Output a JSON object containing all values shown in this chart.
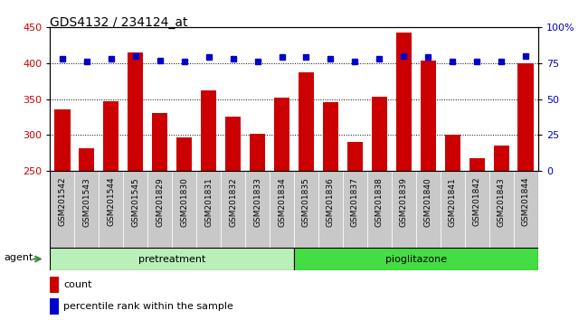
{
  "title": "GDS4132 / 234124_at",
  "samples": [
    "GSM201542",
    "GSM201543",
    "GSM201544",
    "GSM201545",
    "GSM201829",
    "GSM201830",
    "GSM201831",
    "GSM201832",
    "GSM201833",
    "GSM201834",
    "GSM201835",
    "GSM201836",
    "GSM201837",
    "GSM201838",
    "GSM201839",
    "GSM201840",
    "GSM201841",
    "GSM201842",
    "GSM201843",
    "GSM201844"
  ],
  "counts": [
    335,
    282,
    347,
    415,
    330,
    296,
    362,
    326,
    302,
    352,
    387,
    345,
    290,
    353,
    443,
    403,
    300,
    267,
    285,
    400
  ],
  "percentile_ranks": [
    78,
    76,
    78,
    80,
    77,
    76,
    79,
    78,
    76,
    79,
    79,
    78,
    76,
    78,
    80,
    79,
    76,
    76,
    76,
    80
  ],
  "ylim_left": [
    250,
    450
  ],
  "ylim_right": [
    0,
    100
  ],
  "yticks_left": [
    250,
    300,
    350,
    400,
    450
  ],
  "yticks_right": [
    0,
    25,
    50,
    75,
    100
  ],
  "ytick_labels_right": [
    "0",
    "25",
    "50",
    "75",
    "100%"
  ],
  "group_labels": [
    "pretreatment",
    "pioglitazone"
  ],
  "n_pretreatment": 10,
  "n_pioglitazone": 10,
  "bar_color": "#cc0000",
  "dot_color": "#0000cc",
  "bg_xticklabels": "#c8c8c8",
  "agent_label": "agent",
  "legend_count": "count",
  "legend_percentile": "percentile rank within the sample",
  "pretreatment_color": "#b8f0b8",
  "pioglitazone_color": "#44dd44",
  "agent_arrow_color": "#448844",
  "fig_width": 6.5,
  "fig_height": 3.54
}
